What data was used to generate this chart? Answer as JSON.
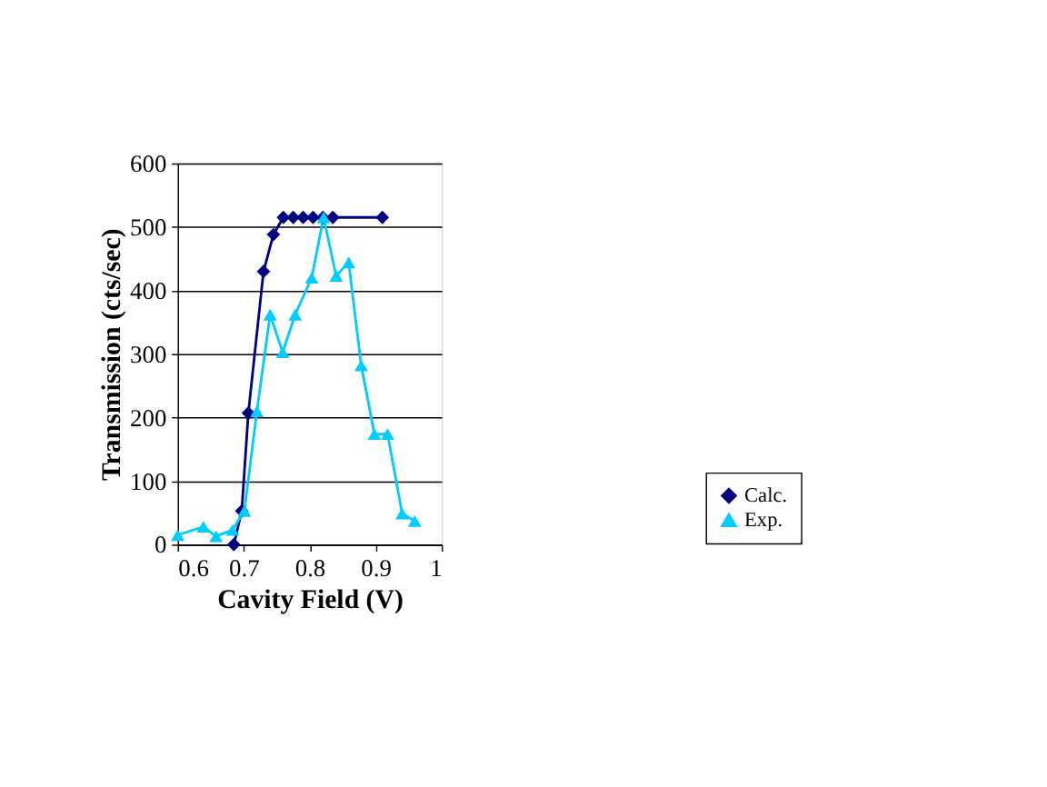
{
  "chart_data": {
    "type": "line",
    "xlabel": "Cavity Field (V)",
    "ylabel": "Transmission (cts/sec)",
    "xlim": [
      0.6,
      1
    ],
    "xticks": [
      0.6,
      0.7,
      0.8,
      0.9,
      1
    ],
    "ylim": [
      0,
      600
    ],
    "yticks": [
      0,
      100,
      200,
      300,
      400,
      500,
      600
    ],
    "grid": "y",
    "legend": "right",
    "series": [
      {
        "name": "Calc.",
        "color": "#000080",
        "marker": "diamond",
        "x": [
          0.685,
          0.697,
          0.707,
          0.73,
          0.745,
          0.76,
          0.775,
          0.79,
          0.805,
          0.82,
          0.835,
          0.91
        ],
        "values": [
          0,
          53,
          207,
          430,
          488,
          515,
          515,
          515,
          515,
          515,
          515,
          515
        ]
      },
      {
        "name": "Exp.",
        "color": "#00ccff",
        "marker": "triangle",
        "x": [
          0.6,
          0.639,
          0.658,
          0.683,
          0.701,
          0.72,
          0.74,
          0.759,
          0.778,
          0.803,
          0.821,
          0.84,
          0.859,
          0.878,
          0.898,
          0.918,
          0.94,
          0.959
        ],
        "values": [
          15,
          28,
          13,
          23,
          53,
          210,
          362,
          303,
          362,
          420,
          515,
          423,
          444,
          282,
          174,
          174,
          49,
          37
        ]
      }
    ]
  }
}
